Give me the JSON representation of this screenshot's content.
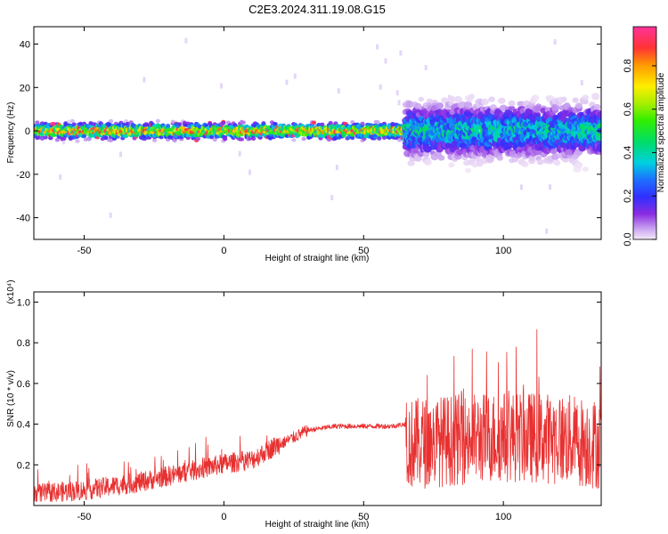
{
  "title": "C2E3.2024.311.19.08.G15",
  "chart_data": [
    {
      "type": "heatmap",
      "xlabel": "Height of straight line (km)",
      "ylabel": "Frequency (Hz)",
      "xlim": [
        -68,
        135
      ],
      "ylim": [
        -50,
        48
      ],
      "xticks": [
        "-50",
        "0",
        "50",
        "100"
      ],
      "yticks": [
        "40",
        "20",
        "0",
        "-20",
        "-40"
      ],
      "colorbar": {
        "label": "Normalized spectral amplitude",
        "range": [
          0.0,
          0.98
        ],
        "ticks": [
          "0.0",
          "0.2",
          "0.4",
          "0.6",
          "0.8"
        ]
      },
      "bands": [
        {
          "x": [
            -68,
            65
          ],
          "center_hz": 0,
          "width_hz": 4,
          "peak_amplitude": 0.95
        },
        {
          "x": [
            65,
            135
          ],
          "center_hz": 0,
          "width_hz": 12,
          "peak_amplitude": 0.5
        }
      ]
    },
    {
      "type": "line",
      "xlabel": "Height of straight line (km)",
      "ylabel": "SNR (10 * v/v)",
      "y_multiplier": "(x10⁴)",
      "xlim": [
        -68,
        135
      ],
      "ylim": [
        0,
        1.05
      ],
      "xticks": [
        "-50",
        "0",
        "50",
        "100"
      ],
      "yticks": [
        "1.0",
        "0.8",
        "0.6",
        "0.4",
        "0.2"
      ],
      "color": "#e83030",
      "series": [
        {
          "x": [
            -68,
            -60,
            -50,
            -40,
            -30,
            -20,
            -10,
            0,
            10,
            20,
            30,
            40,
            50,
            60,
            65,
            66,
            80,
            100,
            120,
            135
          ],
          "values": [
            0.05,
            0.06,
            0.07,
            0.09,
            0.11,
            0.14,
            0.17,
            0.2,
            0.22,
            0.3,
            0.37,
            0.39,
            0.39,
            0.39,
            0.4,
            0.3,
            0.32,
            0.34,
            0.33,
            0.3
          ]
        }
      ]
    }
  ]
}
